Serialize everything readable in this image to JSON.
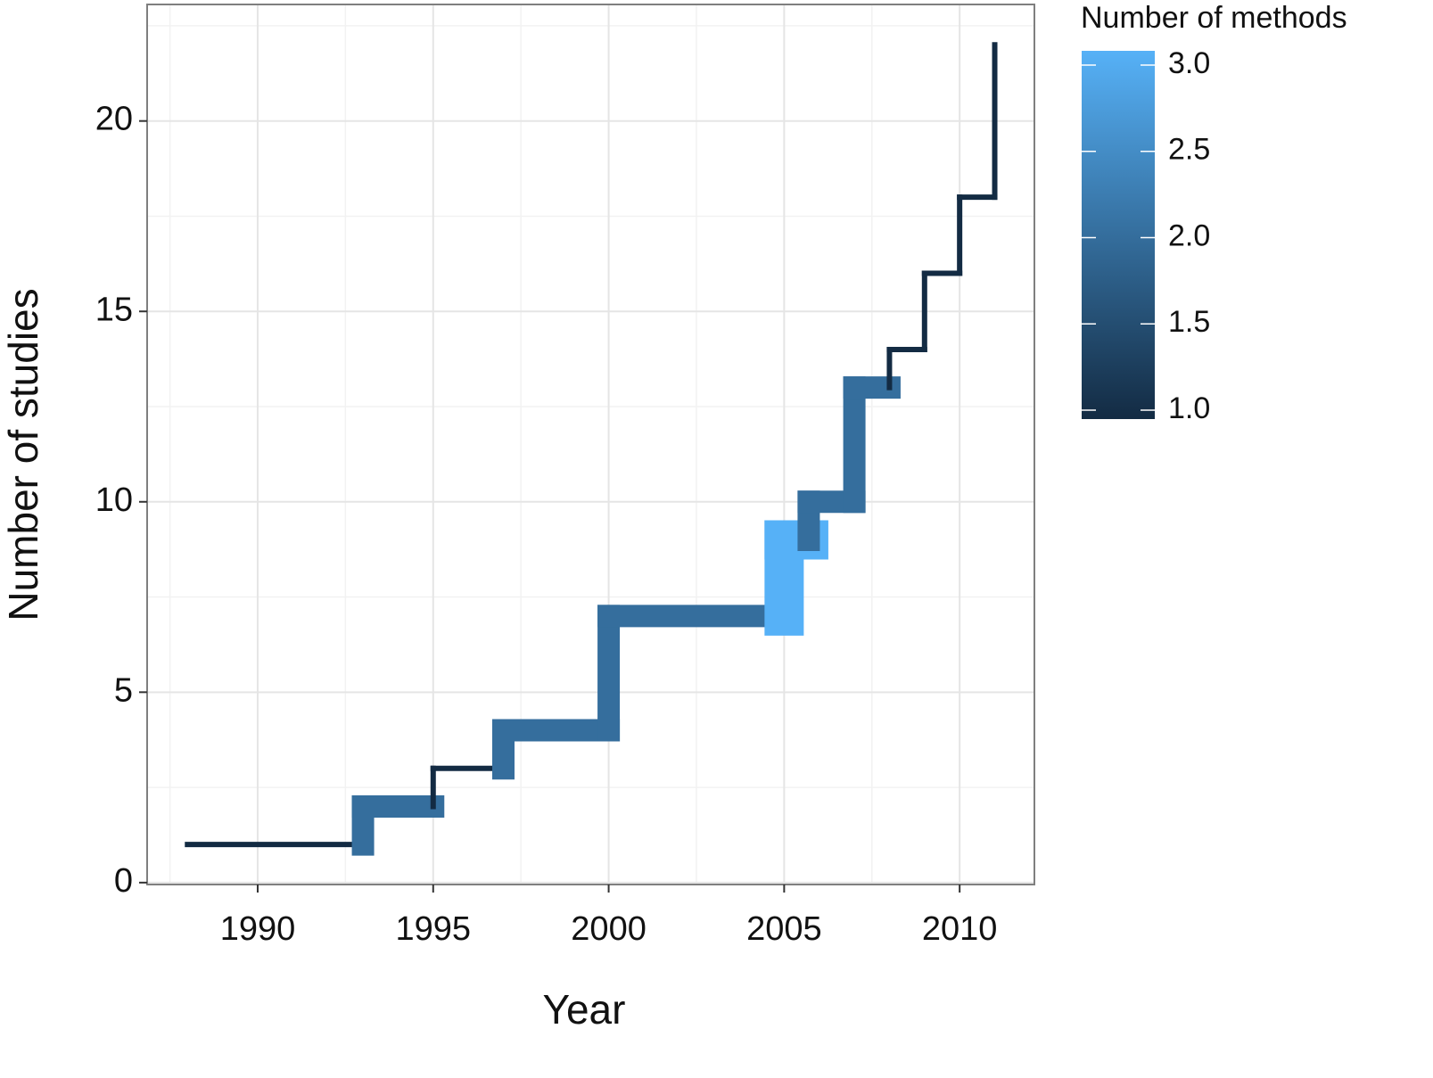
{
  "chart_data": {
    "type": "step",
    "x_label": "Year",
    "y_label": "Number of studies",
    "x": [
      1988,
      1993,
      1995,
      1997,
      2000,
      2005,
      2005.7,
      2007,
      2008,
      2009,
      2010,
      2011
    ],
    "y": [
      1,
      2,
      3,
      4,
      7,
      9,
      10,
      13,
      14,
      16,
      18,
      22
    ],
    "methods": [
      1,
      2,
      1,
      2,
      2,
      3,
      2,
      2,
      1,
      1,
      1,
      1
    ],
    "xlim": [
      1986.85,
      2012.13
    ],
    "ylim": [
      -0.05,
      23.06
    ],
    "xticks": [
      1990,
      1995,
      2000,
      2005,
      2010
    ],
    "yticks": [
      0,
      5,
      10,
      15,
      20
    ],
    "grid": true,
    "legend": {
      "title": "Number of methods",
      "lim": [
        1,
        3
      ],
      "ticks": [
        {
          "value": 1,
          "label": "1.0"
        },
        1.5,
        {
          "value": 2,
          "label": "2.0"
        },
        2.5,
        {
          "value": 3,
          "label": "3.0"
        }
      ],
      "low_color": "#132B43",
      "high_color": "#56B1F7"
    }
  }
}
